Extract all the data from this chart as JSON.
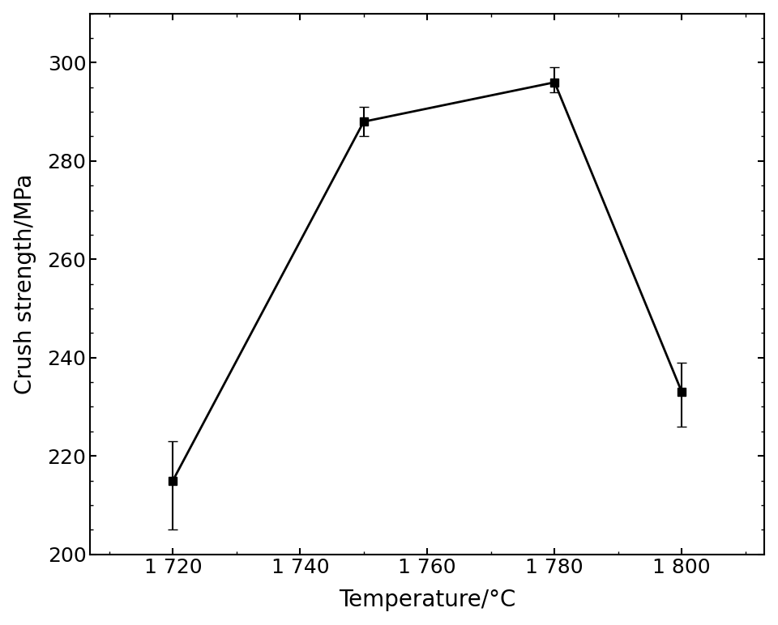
{
  "x": [
    1720,
    1750,
    1780,
    1800
  ],
  "y": [
    215,
    288,
    296,
    233
  ],
  "yerr_upper": [
    8,
    3,
    3,
    6
  ],
  "yerr_lower": [
    10,
    3,
    2,
    7
  ],
  "xlabel": "Temperature/°C",
  "ylabel": "Crush strength/MPa",
  "xlim": [
    1707,
    1813
  ],
  "ylim": [
    200,
    310
  ],
  "xticks": [
    1720,
    1740,
    1760,
    1780,
    1800
  ],
  "yticks": [
    200,
    220,
    240,
    260,
    280,
    300
  ],
  "line_color": "#000000",
  "marker": "s",
  "marker_size": 7,
  "line_width": 2.0,
  "capsize": 4,
  "elinewidth": 1.5,
  "background_color": "#ffffff",
  "tick_label_fontsize": 18,
  "axis_label_fontsize": 20
}
